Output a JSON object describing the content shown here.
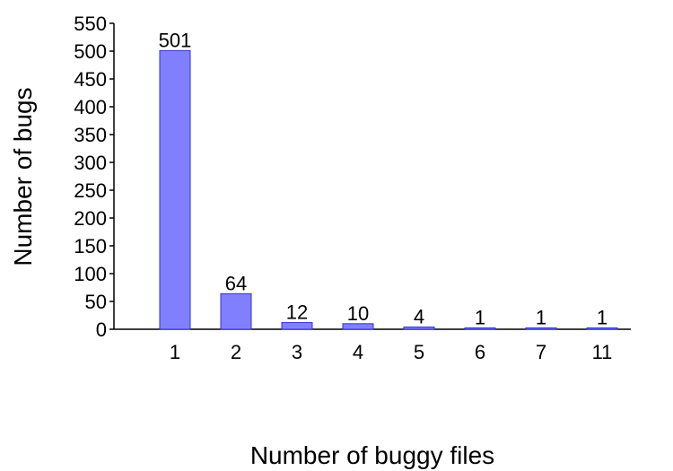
{
  "chart_data": {
    "type": "bar",
    "categories": [
      "1",
      "2",
      "3",
      "4",
      "5",
      "6",
      "7",
      "11"
    ],
    "values": [
      501,
      64,
      12,
      10,
      4,
      1,
      1,
      1
    ],
    "data_labels": [
      "501",
      "64",
      "12",
      "10",
      "4",
      "1",
      "1",
      "1"
    ],
    "xlabel": "Number of buggy files",
    "ylabel": "Number of bugs",
    "ylim": [
      0,
      550
    ],
    "yticks": [
      0,
      50,
      100,
      150,
      200,
      250,
      300,
      350,
      400,
      450,
      500,
      550
    ],
    "grid": false,
    "legend": "none",
    "colors": {
      "bar_fill": "#8080ff",
      "bar_stroke": "#3333cc",
      "axis": "#000000"
    }
  }
}
